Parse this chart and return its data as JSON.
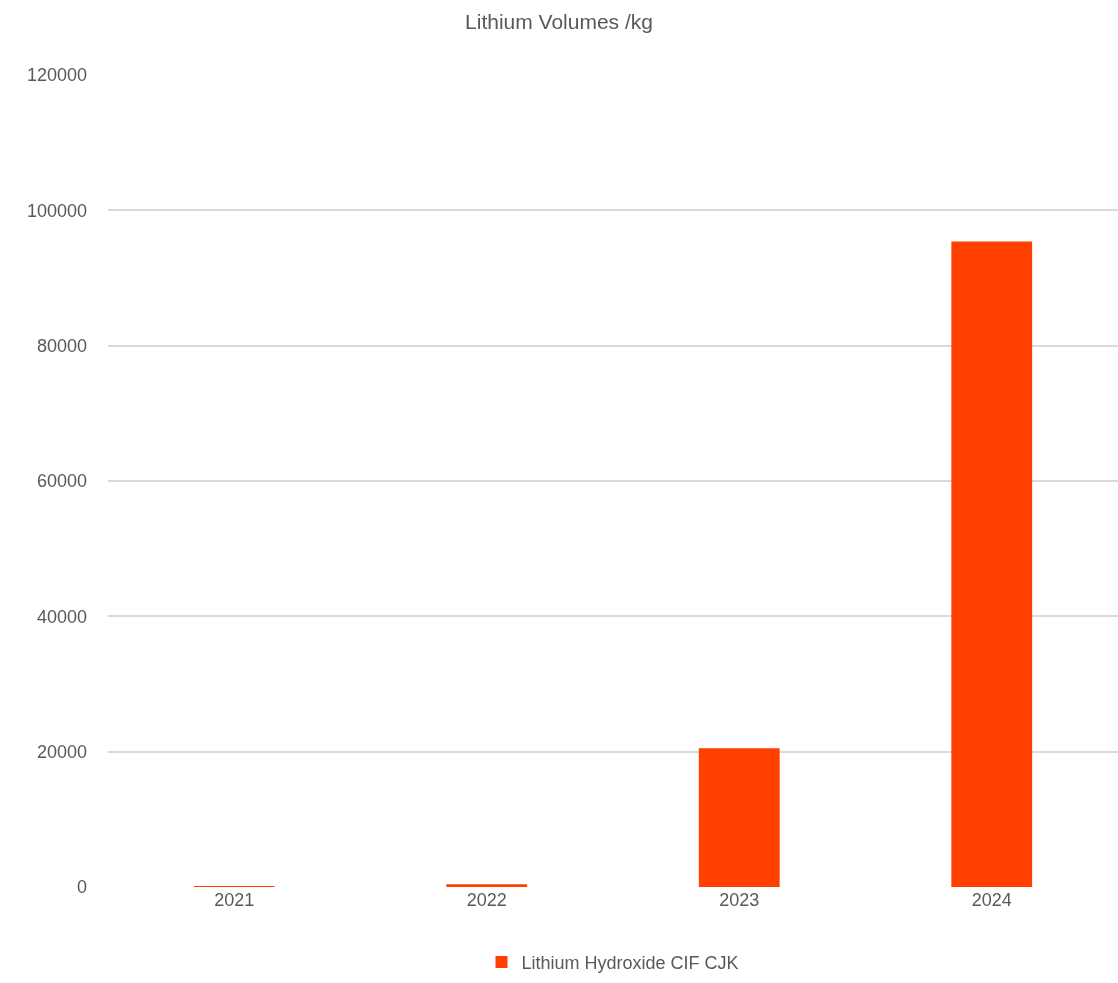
{
  "chart_data": {
    "type": "bar",
    "title": "Lithium Volumes /kg",
    "categories": [
      "2021",
      "2022",
      "2023",
      "2024"
    ],
    "series": [
      {
        "name": "Lithium Hydroxide CIF CJK",
        "color": "#ff4000",
        "values": [
          100,
          400,
          20500,
          95400
        ]
      }
    ],
    "ylim": [
      0,
      120000
    ],
    "yticks": [
      0,
      20000,
      40000,
      60000,
      80000,
      100000,
      120000
    ],
    "grid": "y",
    "legend": "bottom"
  }
}
